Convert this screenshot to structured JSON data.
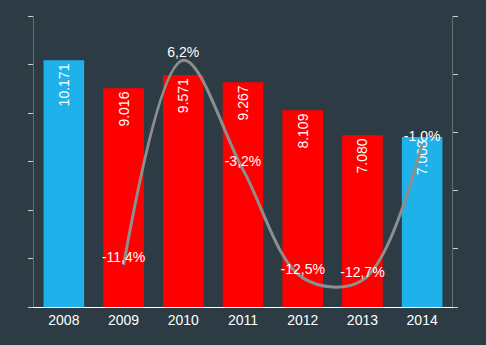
{
  "chart_data": {
    "type": "bar",
    "categories": [
      "2008",
      "2009",
      "2010",
      "2011",
      "2012",
      "2013",
      "2014"
    ],
    "series": [
      {
        "type": "bar",
        "values": [
          10171,
          9016,
          9571,
          9267,
          8109,
          7080,
          7008
        ],
        "value_labels": [
          "10.171",
          "9.016",
          "9.571",
          "9.267",
          "8.109",
          "7.080",
          "7.008"
        ],
        "colors": [
          "#1fb1ea",
          "#ff0000",
          "#ff0000",
          "#ff0000",
          "#ff0000",
          "#ff0000",
          "#1fb1ea"
        ]
      },
      {
        "type": "line",
        "axis": "y2",
        "line_style": "solid",
        "color": "#8e8e8e",
        "values": [
          null,
          -11.4,
          6.2,
          -3.2,
          -12.5,
          -12.7,
          -1.0
        ],
        "value_labels": [
          null,
          "-11,4%",
          "6,2%",
          "-3,2%",
          "-12,5%",
          "-12,7%",
          "-1,0%"
        ]
      }
    ],
    "ylim": [
      0,
      12000
    ],
    "yticks": [
      0,
      2000,
      4000,
      6000,
      8000,
      10000,
      12000
    ],
    "y2lim": [
      -15,
      10
    ],
    "y2ticks": [
      -15,
      -10,
      -5,
      0,
      5,
      10
    ],
    "grid": false,
    "data_labels": true,
    "tick_labels": "x"
  }
}
